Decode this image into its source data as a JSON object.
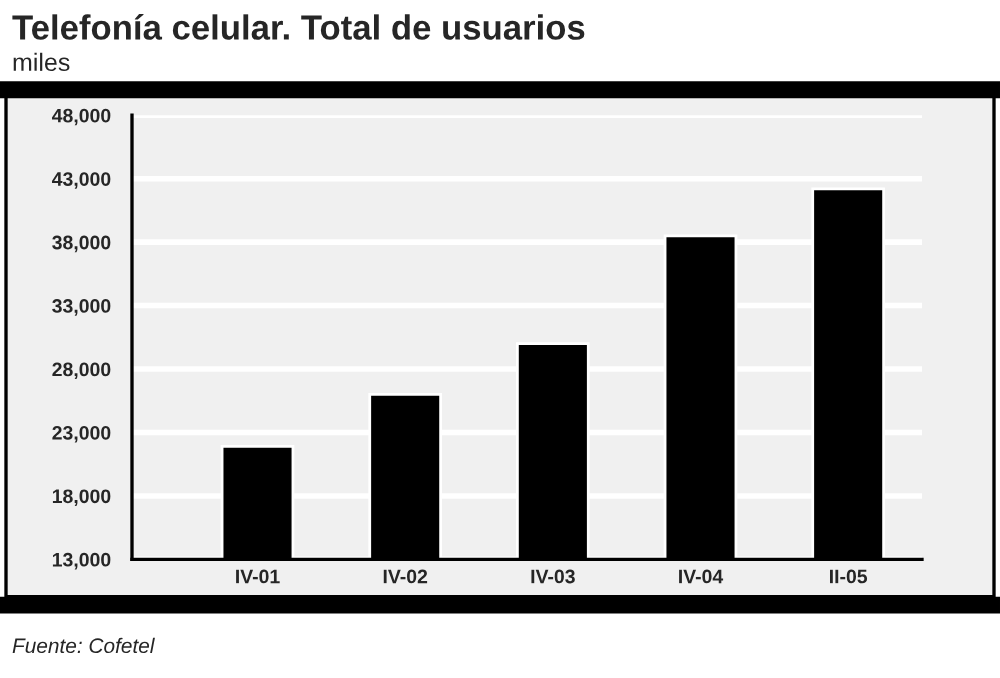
{
  "chart_data": {
    "type": "bar",
    "title": "Telefonía celular. Total de usuarios",
    "subtitle": "miles",
    "categories": [
      "IV-01",
      "IV-02",
      "IV-03",
      "IV-04",
      "II-05"
    ],
    "values": [
      21900,
      26000,
      30000,
      38500,
      42200
    ],
    "color": "#000000",
    "ylim": [
      13000,
      48000
    ],
    "yticks": [
      {
        "value": 13000,
        "label": "13,000"
      },
      {
        "value": 18000,
        "label": "18,000"
      },
      {
        "value": 23000,
        "label": "23,000"
      },
      {
        "value": 28000,
        "label": "28,000"
      },
      {
        "value": 33000,
        "label": "33,000"
      },
      {
        "value": 38000,
        "label": "38,000"
      },
      {
        "value": 43000,
        "label": "43,000"
      },
      {
        "value": 48000,
        "label": "48,000"
      }
    ],
    "grid": "y",
    "annotations": [
      "Fuente: Cofetel"
    ]
  }
}
